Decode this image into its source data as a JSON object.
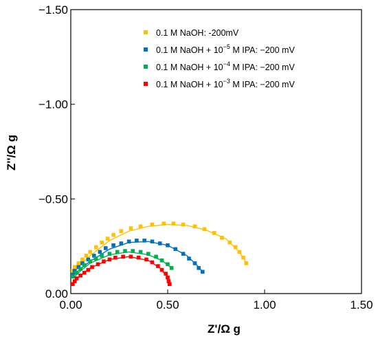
{
  "chart_data": {
    "type": "scatter",
    "xlabel": "Z'/Ω g",
    "ylabel": "Z''/Ω g",
    "xlim": [
      0,
      1.5
    ],
    "ylim": [
      0,
      -1.5
    ],
    "y_axis_inverted": true,
    "x_ticks": [
      0,
      0.5,
      1.0,
      1.5
    ],
    "x_tick_labels": [
      "0.00",
      "0.50",
      "1.00",
      "1.50"
    ],
    "y_ticks": [
      0,
      -0.5,
      -1.0,
      -1.5
    ],
    "y_tick_labels": [
      "0.00",
      "−0.50",
      "−1.00",
      "−1.50"
    ],
    "grid": false,
    "legend_position": "top-right",
    "series": [
      {
        "name": "0.1 M NaOH: -200mV",
        "legend_parts": {
          "pre": "0.1 M NaOH: -200mV",
          "sup": "",
          "post": ""
        },
        "color": "#FFC000",
        "points": [
          [
            0.01,
            -0.12
          ],
          [
            0.02,
            -0.14
          ],
          [
            0.04,
            -0.16
          ],
          [
            0.06,
            -0.18
          ],
          [
            0.08,
            -0.2
          ],
          [
            0.1,
            -0.22
          ],
          [
            0.13,
            -0.245
          ],
          [
            0.16,
            -0.27
          ],
          [
            0.19,
            -0.29
          ],
          [
            0.22,
            -0.31
          ],
          [
            0.26,
            -0.33
          ],
          [
            0.31,
            -0.345
          ],
          [
            0.36,
            -0.355
          ],
          [
            0.42,
            -0.365
          ],
          [
            0.48,
            -0.37
          ],
          [
            0.53,
            -0.37
          ],
          [
            0.58,
            -0.365
          ],
          [
            0.64,
            -0.355
          ],
          [
            0.69,
            -0.34
          ],
          [
            0.74,
            -0.32
          ],
          [
            0.78,
            -0.295
          ],
          [
            0.82,
            -0.27
          ],
          [
            0.85,
            -0.245
          ],
          [
            0.87,
            -0.22
          ],
          [
            0.89,
            -0.19
          ],
          [
            0.905,
            -0.16
          ]
        ],
        "fit": [
          [
            0.01,
            -0.1
          ],
          [
            0.05,
            -0.15
          ],
          [
            0.1,
            -0.2
          ],
          [
            0.2,
            -0.28
          ],
          [
            0.3,
            -0.33
          ],
          [
            0.4,
            -0.355
          ],
          [
            0.5,
            -0.365
          ],
          [
            0.6,
            -0.36
          ],
          [
            0.7,
            -0.335
          ],
          [
            0.8,
            -0.29
          ],
          [
            0.87,
            -0.22
          ],
          [
            0.91,
            -0.155
          ]
        ]
      },
      {
        "name": "0.1 M NaOH + 10⁻⁵ M IPA: −200 mV",
        "legend_parts": {
          "pre": "0.1 M NaOH +  10",
          "sup": "−5",
          "post": " M IPA: −200 mV"
        },
        "color": "#0070C0",
        "points": [
          [
            0.01,
            -0.1
          ],
          [
            0.02,
            -0.12
          ],
          [
            0.04,
            -0.14
          ],
          [
            0.06,
            -0.16
          ],
          [
            0.09,
            -0.18
          ],
          [
            0.12,
            -0.2
          ],
          [
            0.15,
            -0.22
          ],
          [
            0.18,
            -0.24
          ],
          [
            0.22,
            -0.255
          ],
          [
            0.26,
            -0.265
          ],
          [
            0.3,
            -0.275
          ],
          [
            0.34,
            -0.28
          ],
          [
            0.38,
            -0.28
          ],
          [
            0.42,
            -0.275
          ],
          [
            0.46,
            -0.265
          ],
          [
            0.5,
            -0.255
          ],
          [
            0.54,
            -0.235
          ],
          [
            0.58,
            -0.21
          ],
          [
            0.61,
            -0.185
          ],
          [
            0.64,
            -0.16
          ],
          [
            0.66,
            -0.135
          ],
          [
            0.68,
            -0.115
          ]
        ],
        "fit": [
          [
            0.01,
            -0.09
          ],
          [
            0.05,
            -0.13
          ],
          [
            0.1,
            -0.17
          ],
          [
            0.2,
            -0.235
          ],
          [
            0.3,
            -0.27
          ],
          [
            0.4,
            -0.275
          ],
          [
            0.5,
            -0.255
          ],
          [
            0.6,
            -0.2
          ],
          [
            0.66,
            -0.14
          ],
          [
            0.68,
            -0.115
          ]
        ]
      },
      {
        "name": "0.1 M NaOH + 10⁻⁴ M IPA: −200 mV",
        "legend_parts": {
          "pre": "0.1 M NaOH + 10",
          "sup": "−4",
          "post": " M IPA: −200 mV"
        },
        "color": "#00B050",
        "points": [
          [
            0.01,
            -0.09
          ],
          [
            0.03,
            -0.11
          ],
          [
            0.05,
            -0.13
          ],
          [
            0.07,
            -0.15
          ],
          [
            0.1,
            -0.17
          ],
          [
            0.13,
            -0.185
          ],
          [
            0.16,
            -0.2
          ],
          [
            0.2,
            -0.21
          ],
          [
            0.24,
            -0.22
          ],
          [
            0.28,
            -0.225
          ],
          [
            0.32,
            -0.225
          ],
          [
            0.36,
            -0.22
          ],
          [
            0.4,
            -0.21
          ],
          [
            0.44,
            -0.195
          ],
          [
            0.47,
            -0.175
          ],
          [
            0.5,
            -0.155
          ],
          [
            0.52,
            -0.135
          ]
        ],
        "fit": [
          [
            0.01,
            -0.08
          ],
          [
            0.05,
            -0.12
          ],
          [
            0.1,
            -0.16
          ],
          [
            0.2,
            -0.205
          ],
          [
            0.3,
            -0.22
          ],
          [
            0.4,
            -0.205
          ],
          [
            0.47,
            -0.175
          ],
          [
            0.52,
            -0.135
          ]
        ]
      },
      {
        "name": "0.1 M NaOH + 10⁻³ M IPA: −200 mV",
        "legend_parts": {
          "pre": "0.1 M NaOH + 10",
          "sup": "−3",
          "post": " M IPA: −200 mV"
        },
        "color": "#FF0000",
        "points": [
          [
            0.01,
            -0.05
          ],
          [
            0.02,
            -0.065
          ],
          [
            0.03,
            -0.08
          ],
          [
            0.05,
            -0.095
          ],
          [
            0.07,
            -0.11
          ],
          [
            0.09,
            -0.125
          ],
          [
            0.11,
            -0.14
          ],
          [
            0.14,
            -0.155
          ],
          [
            0.17,
            -0.17
          ],
          [
            0.2,
            -0.18
          ],
          [
            0.23,
            -0.19
          ],
          [
            0.27,
            -0.195
          ],
          [
            0.31,
            -0.195
          ],
          [
            0.35,
            -0.19
          ],
          [
            0.39,
            -0.18
          ],
          [
            0.42,
            -0.165
          ],
          [
            0.45,
            -0.145
          ],
          [
            0.47,
            -0.125
          ],
          [
            0.49,
            -0.105
          ],
          [
            0.5,
            -0.085
          ],
          [
            0.505,
            -0.065
          ],
          [
            0.51,
            -0.05
          ]
        ],
        "fit": [
          [
            0.01,
            -0.05
          ],
          [
            0.05,
            -0.095
          ],
          [
            0.1,
            -0.135
          ],
          [
            0.2,
            -0.18
          ],
          [
            0.3,
            -0.195
          ],
          [
            0.4,
            -0.175
          ],
          [
            0.46,
            -0.135
          ],
          [
            0.5,
            -0.085
          ],
          [
            0.51,
            -0.05
          ]
        ]
      }
    ]
  }
}
